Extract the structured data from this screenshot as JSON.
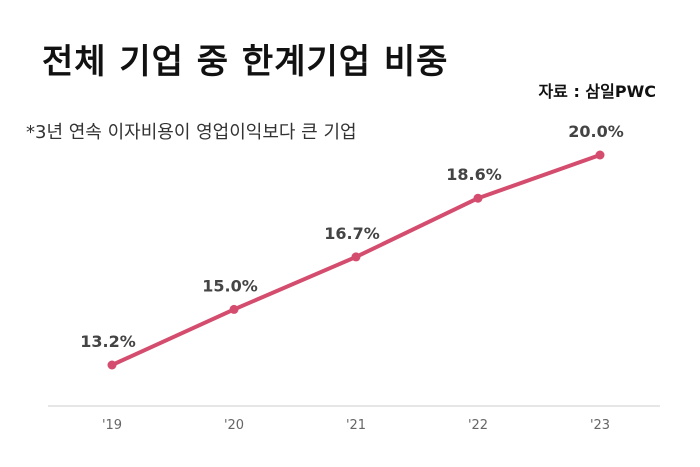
{
  "header": {
    "title": "전체 기업 중 한계기업 비중",
    "source": "자료 : 삼일PWC",
    "subtitle": "*3년 연속 이자비용이 영업이익보다 큰 기업"
  },
  "colors": {
    "line": "#d44d6e",
    "axis": "#dddddd",
    "label": "#444444",
    "tick": "#666666"
  },
  "chart_data": {
    "type": "line",
    "title": "전체 기업 중 한계기업 비중",
    "subtitle": "*3년 연속 이자비용이 영업이익보다 큰 기업",
    "categories": [
      "'19",
      "'20",
      "'21",
      "'22",
      "'23"
    ],
    "values": [
      13.2,
      15.0,
      16.7,
      18.6,
      20.0
    ],
    "data_labels": [
      "13.2%",
      "15.0%",
      "16.7%",
      "18.6%",
      "20.0%"
    ],
    "grid": false,
    "legend": "none",
    "ylim": [
      10,
      21
    ]
  }
}
